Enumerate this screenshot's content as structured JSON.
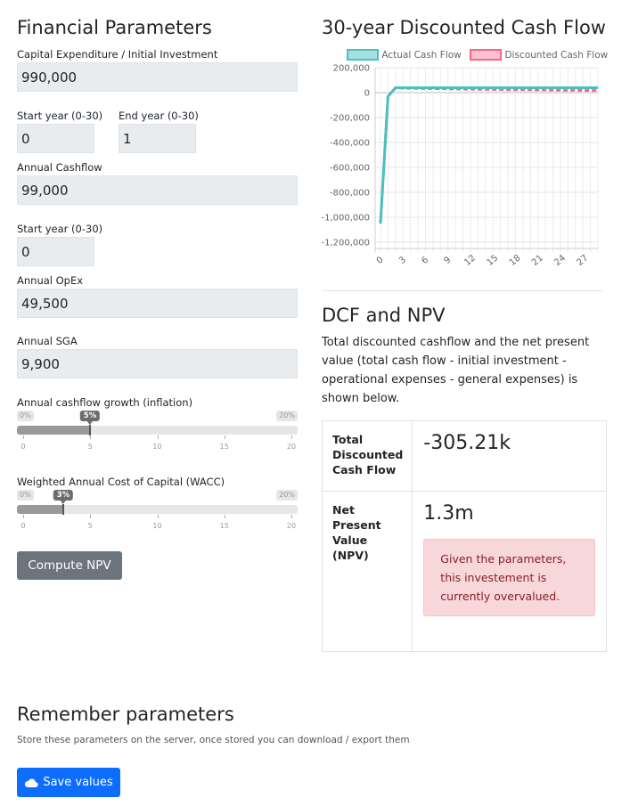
{
  "params": {
    "title": "Financial Parameters",
    "capex": {
      "label": "Capital Expenditure / Initial Investment",
      "value": "990,000"
    },
    "capex_start": {
      "label": "Start year (0-30)",
      "value": "0"
    },
    "capex_end": {
      "label": "End year (0-30)",
      "value": "1"
    },
    "cashflow": {
      "label": "Annual Cashflow",
      "value": "99,000"
    },
    "cashflow_start": {
      "label": "Start year (0-30)",
      "value": "0"
    },
    "opex": {
      "label": "Annual OpEx",
      "value": "49,500"
    },
    "sga": {
      "label": "Annual SGA",
      "value": "9,900"
    },
    "growth": {
      "label": "Annual cashflow growth (inflation)",
      "min": "0%",
      "max": "20%",
      "value_label": "5%",
      "value": 5,
      "range": [
        0,
        20
      ],
      "ticks": [
        "0",
        "5",
        "10",
        "15",
        "20"
      ]
    },
    "wacc": {
      "label": "Weighted Annual Cost of Capital (WACC)",
      "min": "0%",
      "max": "20%",
      "value_label": "3%",
      "value": 3,
      "range": [
        0,
        20
      ],
      "ticks": [
        "0",
        "5",
        "10",
        "15",
        "20"
      ]
    },
    "compute_label": "Compute NPV"
  },
  "chart": {
    "title": "30-year Discounted Cash Flow",
    "legend": [
      {
        "name": "Actual Cash Flow",
        "color": "#4bc0c0",
        "fill": "#a6e0e0"
      },
      {
        "name": "Discounted Cash Flow",
        "color": "#ff6384",
        "fill": "#ffc1cf"
      }
    ]
  },
  "chart_data": {
    "type": "line",
    "x": [
      0,
      1,
      2,
      3,
      4,
      5,
      6,
      7,
      8,
      9,
      10,
      11,
      12,
      13,
      14,
      15,
      16,
      17,
      18,
      19,
      20,
      21,
      22,
      23,
      24,
      25,
      26,
      27,
      28,
      29
    ],
    "x_tick_labels": [
      "0",
      "3",
      "6",
      "9",
      "12",
      "15",
      "18",
      "21",
      "24",
      "27"
    ],
    "y_tick_labels": [
      "200,000",
      "0",
      "-200,000",
      "-400,000",
      "-600,000",
      "-800,000",
      "-1,000,000",
      "-1,200,000"
    ],
    "ylim": [
      -1250000,
      200000
    ],
    "grid": true,
    "legend_position": "top",
    "series": [
      {
        "name": "Actual Cash Flow",
        "values": [
          -1050000,
          -30000,
          39600,
          39600,
          39600,
          39600,
          39600,
          39600,
          39600,
          39600,
          39600,
          39600,
          39600,
          39600,
          39600,
          39600,
          39600,
          39600,
          39600,
          39600,
          39600,
          39600,
          39600,
          39600,
          39600,
          39600,
          39600,
          39600,
          39600,
          39600
        ]
      },
      {
        "name": "Discounted Cash Flow",
        "values": [
          -1050000,
          -30000,
          37300,
          36200,
          35200,
          34100,
          33100,
          32200,
          31200,
          30300,
          29400,
          28600,
          27800,
          26900,
          26200,
          25400,
          24700,
          23900,
          23200,
          22500,
          21900,
          21300,
          20600,
          20000,
          19400,
          18900,
          18300,
          17800,
          17300,
          16800
        ]
      }
    ]
  },
  "result": {
    "title": "DCF and NPV",
    "description": "Total discounted cashflow and the net present value (total cash flow - initial investment - operational expenses - general expenses) is shown below.",
    "dcf_label": "Total Discounted Cash Flow",
    "dcf_value": "-305.21k",
    "npv_label": "Net Present Value (NPV)",
    "npv_value": "1.3m",
    "alert": "Given the parameters, this investement is currently overvalued."
  },
  "remember": {
    "title": "Remember parameters",
    "subtitle": "Store these parameters on the server, once stored you can download / export them",
    "save_label": "Save values",
    "save_icon": "cloud-icon"
  }
}
